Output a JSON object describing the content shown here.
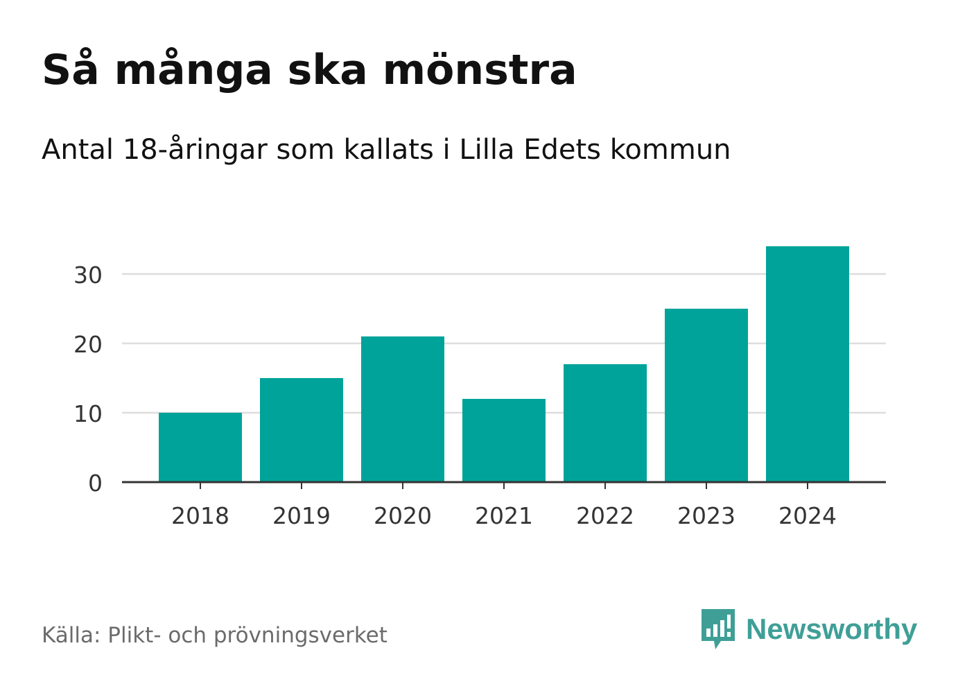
{
  "header": {
    "title": "Så många ska mönstra",
    "subtitle": "Antal 18-åringar som kallats i Lilla Edets kommun"
  },
  "footer": {
    "source": "Källa: Plikt- och prövningsverket",
    "brand": "Newsworthy"
  },
  "colors": {
    "bar": "#00a39a",
    "grid": "#dddddd",
    "axis": "#333333",
    "tick_text": "#333333",
    "brand": "#3f9f97",
    "source_text": "#6b6b6b"
  },
  "chart_data": {
    "type": "bar",
    "title": "Så många ska mönstra",
    "subtitle": "Antal 18-åringar som kallats i Lilla Edets kommun",
    "xlabel": "",
    "ylabel": "",
    "categories": [
      "2018",
      "2019",
      "2020",
      "2021",
      "2022",
      "2023",
      "2024"
    ],
    "values": [
      10,
      15,
      21,
      12,
      17,
      25,
      34
    ],
    "ylim": [
      0,
      34
    ],
    "yticks": [
      0,
      10,
      20,
      30
    ],
    "grid": true,
    "legend": "none"
  }
}
